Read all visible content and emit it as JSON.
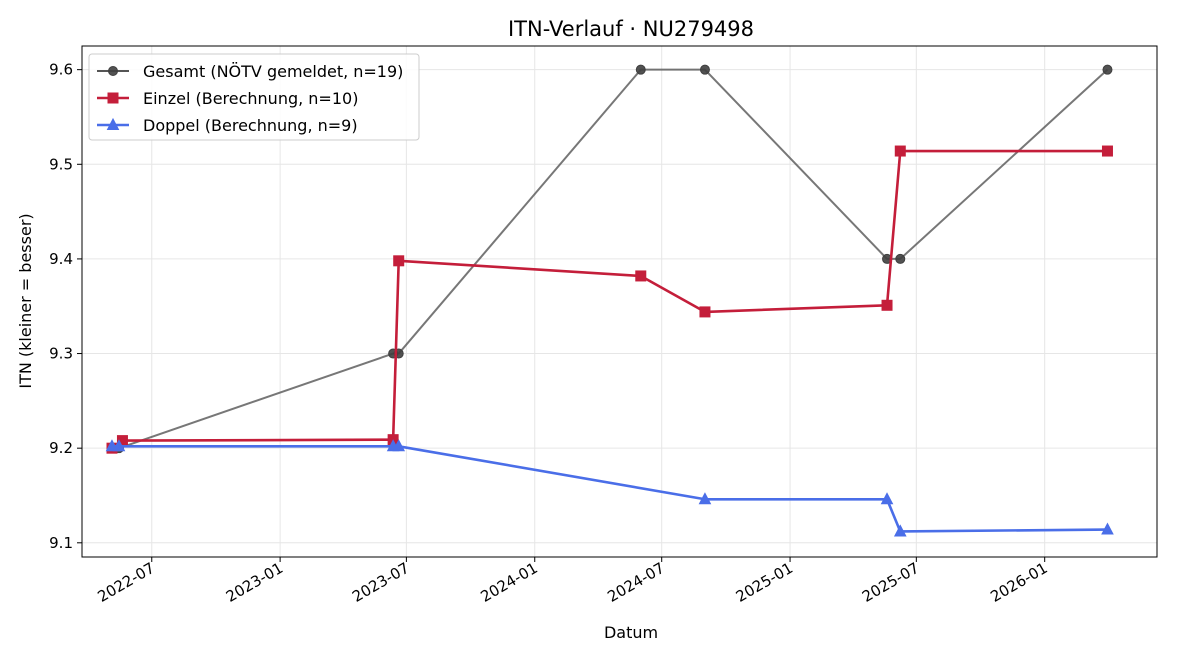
{
  "chart_data": {
    "type": "line",
    "title": "ITN-Verlauf · NU279498",
    "xlabel": "Datum",
    "ylabel": "ITN  (kleiner = besser)",
    "x_ticks": [
      "2022-07",
      "2023-01",
      "2023-07",
      "2024-01",
      "2024-07",
      "2025-01",
      "2025-07",
      "2026-01"
    ],
    "y_ticks": [
      "9.1",
      "9.2",
      "9.3",
      "9.4",
      "9.5",
      "9.6"
    ],
    "xlim": [
      "2022-03-23",
      "2026-06-11"
    ],
    "ylim": [
      9.085,
      9.625
    ],
    "grid": true,
    "legend_position": "top-left",
    "series": [
      {
        "name": "Gesamt (NÖTV gemeldet, n=19)",
        "color": "#555555",
        "marker": "circle",
        "x": [
          "2022-05-05",
          "2022-05-15",
          "2023-06-12",
          "2023-06-20",
          "2024-06-01",
          "2024-09-01",
          "2025-05-20",
          "2025-06-08",
          "2026-04-01"
        ],
        "y": [
          9.2,
          9.2,
          9.3,
          9.3,
          9.6,
          9.6,
          9.4,
          9.4,
          9.6
        ]
      },
      {
        "name": "Einzel (Berechnung, n=10)",
        "color": "#c41e3a",
        "marker": "square",
        "x": [
          "2022-05-05",
          "2022-05-20",
          "2023-06-12",
          "2023-06-20",
          "2024-06-01",
          "2024-09-01",
          "2025-05-20",
          "2025-06-08",
          "2026-04-01"
        ],
        "y": [
          9.2,
          9.208,
          9.209,
          9.398,
          9.382,
          9.344,
          9.351,
          9.514,
          9.514
        ]
      },
      {
        "name": "Doppel (Berechnung, n=9)",
        "color": "#4a6ee8",
        "marker": "triangle",
        "x": [
          "2022-05-05",
          "2022-05-15",
          "2023-06-12",
          "2023-06-20",
          "2024-09-01",
          "2025-05-20",
          "2025-06-08",
          "2026-04-01"
        ],
        "y": [
          9.202,
          9.202,
          9.202,
          9.202,
          9.146,
          9.146,
          9.112,
          9.114
        ]
      }
    ]
  }
}
